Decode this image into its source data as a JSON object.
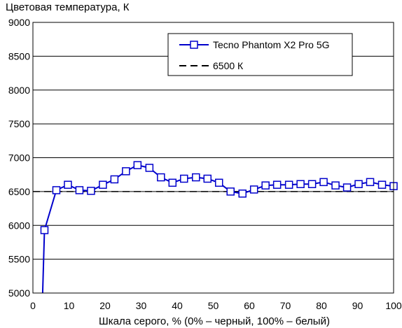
{
  "chart_data": {
    "type": "line",
    "title": "",
    "ylabel": "Цветовая температура, К",
    "xlabel": "Шкала серого, % (0% – черный, 100% – белый)",
    "xlim": [
      0,
      100
    ],
    "ylim": [
      5000,
      9000
    ],
    "xticks": [
      "0",
      "10",
      "20",
      "30",
      "40",
      "50",
      "60",
      "70",
      "80",
      "90",
      "100"
    ],
    "yticks": [
      "5000",
      "5500",
      "6000",
      "6500",
      "7000",
      "7500",
      "8000",
      "8500",
      "9000"
    ],
    "grid": "horizontal",
    "legend_position": "top-right",
    "series": [
      {
        "name": "Tecno Phantom X2 Pro 5G",
        "color": "#0000cc",
        "marker": "square",
        "x": [
          2.7,
          3.2,
          6.5,
          9.7,
          12.9,
          16.1,
          19.4,
          22.6,
          25.8,
          29.0,
          32.3,
          35.5,
          38.7,
          41.9,
          45.2,
          48.4,
          51.6,
          54.8,
          58.1,
          61.3,
          64.5,
          67.7,
          71.0,
          74.2,
          77.4,
          80.6,
          83.9,
          87.1,
          90.3,
          93.5,
          96.8,
          100
        ],
        "y": [
          5000,
          5930,
          6520,
          6600,
          6520,
          6510,
          6600,
          6680,
          6800,
          6890,
          6850,
          6710,
          6630,
          6690,
          6710,
          6690,
          6630,
          6500,
          6470,
          6530,
          6590,
          6600,
          6600,
          6610,
          6610,
          6640,
          6590,
          6560,
          6610,
          6640,
          6600,
          6580
        ]
      },
      {
        "name": "6500 К",
        "color": "#000000",
        "style": "dashed",
        "x": [
          0,
          100
        ],
        "y": [
          6500,
          6500
        ]
      }
    ]
  }
}
